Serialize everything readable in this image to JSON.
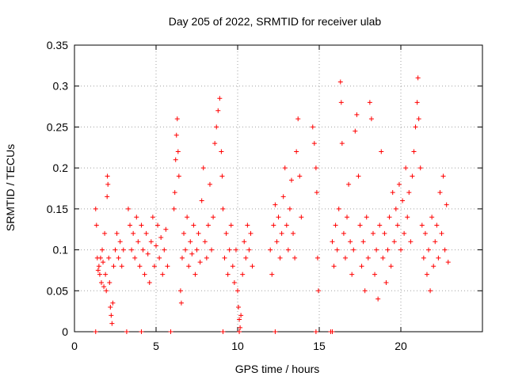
{
  "chart_data": {
    "type": "scatter",
    "title": "Day 205 of 2022, SRMTID for receiver ulab",
    "xlabel": "GPS time / hours",
    "ylabel": "SRMTID / TECUs",
    "xlim": [
      0,
      25
    ],
    "ylim": [
      0,
      0.35
    ],
    "xticks": [
      0,
      5,
      10,
      15,
      20
    ],
    "yticks": [
      0,
      0.05,
      0.1,
      0.15,
      0.2,
      0.25,
      0.3,
      0.35
    ],
    "xtick_labels": [
      "0",
      "5",
      "10",
      "15",
      "20"
    ],
    "ytick_labels": [
      "0",
      "0.05",
      "0.1",
      "0.15",
      "0.2",
      "0.25",
      "0.3",
      "0.35"
    ],
    "grid": true,
    "marker": "+",
    "color": "#ff0000",
    "zero_marks_x": [
      1.3,
      3.2,
      4.1,
      5.9,
      9.1,
      10.1,
      12.3,
      14.8,
      15.7,
      15.8
    ],
    "points": [
      [
        1.3,
        0.15
      ],
      [
        1.35,
        0.13
      ],
      [
        1.4,
        0.09
      ],
      [
        1.45,
        0.075
      ],
      [
        1.5,
        0.08
      ],
      [
        1.55,
        0.07
      ],
      [
        1.6,
        0.09
      ],
      [
        1.65,
        0.06
      ],
      [
        1.7,
        0.1
      ],
      [
        1.75,
        0.085
      ],
      [
        1.8,
        0.055
      ],
      [
        1.85,
        0.12
      ],
      [
        1.9,
        0.07
      ],
      [
        1.95,
        0.05
      ],
      [
        2.0,
        0.165
      ],
      [
        2.02,
        0.19
      ],
      [
        2.05,
        0.18
      ],
      [
        2.1,
        0.09
      ],
      [
        2.15,
        0.06
      ],
      [
        2.2,
        0.03
      ],
      [
        2.25,
        0.02
      ],
      [
        2.3,
        0.01
      ],
      [
        2.35,
        0.035
      ],
      [
        2.4,
        0.08
      ],
      [
        2.5,
        0.1
      ],
      [
        2.6,
        0.12
      ],
      [
        2.7,
        0.09
      ],
      [
        2.8,
        0.11
      ],
      [
        2.9,
        0.08
      ],
      [
        3.0,
        0.1
      ],
      [
        3.3,
        0.15
      ],
      [
        3.4,
        0.13
      ],
      [
        3.5,
        0.1
      ],
      [
        3.6,
        0.12
      ],
      [
        3.7,
        0.09
      ],
      [
        3.8,
        0.14
      ],
      [
        3.9,
        0.11
      ],
      [
        4.0,
        0.08
      ],
      [
        4.1,
        0.13
      ],
      [
        4.2,
        0.1
      ],
      [
        4.3,
        0.07
      ],
      [
        4.4,
        0.12
      ],
      [
        4.5,
        0.095
      ],
      [
        4.6,
        0.06
      ],
      [
        4.7,
        0.11
      ],
      [
        4.8,
        0.14
      ],
      [
        4.9,
        0.08
      ],
      [
        5.0,
        0.105
      ],
      [
        5.1,
        0.13
      ],
      [
        5.2,
        0.09
      ],
      [
        5.3,
        0.115
      ],
      [
        5.4,
        0.07
      ],
      [
        5.5,
        0.1
      ],
      [
        5.6,
        0.125
      ],
      [
        5.7,
        0.08
      ],
      [
        6.1,
        0.15
      ],
      [
        6.15,
        0.17
      ],
      [
        6.2,
        0.21
      ],
      [
        6.25,
        0.24
      ],
      [
        6.3,
        0.26
      ],
      [
        6.35,
        0.22
      ],
      [
        6.4,
        0.19
      ],
      [
        6.5,
        0.05
      ],
      [
        6.55,
        0.035
      ],
      [
        6.6,
        0.09
      ],
      [
        6.7,
        0.12
      ],
      [
        6.8,
        0.1
      ],
      [
        6.9,
        0.14
      ],
      [
        7.0,
        0.08
      ],
      [
        7.1,
        0.11
      ],
      [
        7.2,
        0.095
      ],
      [
        7.3,
        0.13
      ],
      [
        7.4,
        0.07
      ],
      [
        7.5,
        0.1
      ],
      [
        7.6,
        0.12
      ],
      [
        7.7,
        0.085
      ],
      [
        7.8,
        0.16
      ],
      [
        7.9,
        0.2
      ],
      [
        8.0,
        0.11
      ],
      [
        8.1,
        0.09
      ],
      [
        8.2,
        0.13
      ],
      [
        8.3,
        0.18
      ],
      [
        8.4,
        0.1
      ],
      [
        8.5,
        0.14
      ],
      [
        8.6,
        0.23
      ],
      [
        8.7,
        0.25
      ],
      [
        8.8,
        0.27
      ],
      [
        8.9,
        0.285
      ],
      [
        9.0,
        0.22
      ],
      [
        9.05,
        0.19
      ],
      [
        9.1,
        0.15
      ],
      [
        9.2,
        0.09
      ],
      [
        9.3,
        0.12
      ],
      [
        9.4,
        0.07
      ],
      [
        9.5,
        0.1
      ],
      [
        9.6,
        0.13
      ],
      [
        9.7,
        0.08
      ],
      [
        9.8,
        0.06
      ],
      [
        9.9,
        0.1
      ],
      [
        10.0,
        0.05
      ],
      [
        10.05,
        0.03
      ],
      [
        10.1,
        0.015
      ],
      [
        10.15,
        0.005
      ],
      [
        10.2,
        0.02
      ],
      [
        10.3,
        0.07
      ],
      [
        10.4,
        0.11
      ],
      [
        10.5,
        0.09
      ],
      [
        10.6,
        0.13
      ],
      [
        10.7,
        0.1
      ],
      [
        10.8,
        0.12
      ],
      [
        10.9,
        0.08
      ],
      [
        12.0,
        0.1
      ],
      [
        12.1,
        0.07
      ],
      [
        12.2,
        0.13
      ],
      [
        12.3,
        0.155
      ],
      [
        12.4,
        0.11
      ],
      [
        12.5,
        0.14
      ],
      [
        12.6,
        0.09
      ],
      [
        12.7,
        0.12
      ],
      [
        12.8,
        0.165
      ],
      [
        12.9,
        0.2
      ],
      [
        13.0,
        0.13
      ],
      [
        13.1,
        0.1
      ],
      [
        13.2,
        0.15
      ],
      [
        13.3,
        0.185
      ],
      [
        13.4,
        0.12
      ],
      [
        13.5,
        0.09
      ],
      [
        13.6,
        0.22
      ],
      [
        13.7,
        0.26
      ],
      [
        13.8,
        0.19
      ],
      [
        13.9,
        0.14
      ],
      [
        14.6,
        0.25
      ],
      [
        14.7,
        0.23
      ],
      [
        14.8,
        0.2
      ],
      [
        14.85,
        0.17
      ],
      [
        14.9,
        0.09
      ],
      [
        14.95,
        0.05
      ],
      [
        15.8,
        0.11
      ],
      [
        15.9,
        0.08
      ],
      [
        16.0,
        0.13
      ],
      [
        16.1,
        0.1
      ],
      [
        16.2,
        0.15
      ],
      [
        16.3,
        0.305
      ],
      [
        16.35,
        0.28
      ],
      [
        16.4,
        0.23
      ],
      [
        16.5,
        0.12
      ],
      [
        16.6,
        0.09
      ],
      [
        16.7,
        0.14
      ],
      [
        16.8,
        0.18
      ],
      [
        16.9,
        0.11
      ],
      [
        17.0,
        0.07
      ],
      [
        17.1,
        0.1
      ],
      [
        17.2,
        0.245
      ],
      [
        17.3,
        0.265
      ],
      [
        17.4,
        0.19
      ],
      [
        17.5,
        0.13
      ],
      [
        17.6,
        0.08
      ],
      [
        17.7,
        0.11
      ],
      [
        17.8,
        0.05
      ],
      [
        17.9,
        0.14
      ],
      [
        18.0,
        0.09
      ],
      [
        18.1,
        0.28
      ],
      [
        18.2,
        0.26
      ],
      [
        18.3,
        0.12
      ],
      [
        18.4,
        0.07
      ],
      [
        18.5,
        0.1
      ],
      [
        18.6,
        0.04
      ],
      [
        18.7,
        0.13
      ],
      [
        18.8,
        0.22
      ],
      [
        18.9,
        0.09
      ],
      [
        19.0,
        0.12
      ],
      [
        19.1,
        0.06
      ],
      [
        19.2,
        0.1
      ],
      [
        19.3,
        0.14
      ],
      [
        19.4,
        0.08
      ],
      [
        19.5,
        0.17
      ],
      [
        19.6,
        0.11
      ],
      [
        19.7,
        0.15
      ],
      [
        19.8,
        0.13
      ],
      [
        19.9,
        0.18
      ],
      [
        20.0,
        0.1
      ],
      [
        20.1,
        0.16
      ],
      [
        20.2,
        0.12
      ],
      [
        20.3,
        0.2
      ],
      [
        20.4,
        0.14
      ],
      [
        20.5,
        0.17
      ],
      [
        20.6,
        0.11
      ],
      [
        20.7,
        0.19
      ],
      [
        20.8,
        0.22
      ],
      [
        20.9,
        0.25
      ],
      [
        21.0,
        0.28
      ],
      [
        21.05,
        0.31
      ],
      [
        21.1,
        0.26
      ],
      [
        21.2,
        0.2
      ],
      [
        21.3,
        0.13
      ],
      [
        21.4,
        0.09
      ],
      [
        21.5,
        0.12
      ],
      [
        21.6,
        0.07
      ],
      [
        21.7,
        0.1
      ],
      [
        21.8,
        0.05
      ],
      [
        21.9,
        0.14
      ],
      [
        22.0,
        0.08
      ],
      [
        22.1,
        0.11
      ],
      [
        22.2,
        0.13
      ],
      [
        22.3,
        0.09
      ],
      [
        22.4,
        0.17
      ],
      [
        22.5,
        0.12
      ],
      [
        22.6,
        0.19
      ],
      [
        22.7,
        0.1
      ],
      [
        22.8,
        0.155
      ],
      [
        22.9,
        0.085
      ]
    ]
  }
}
